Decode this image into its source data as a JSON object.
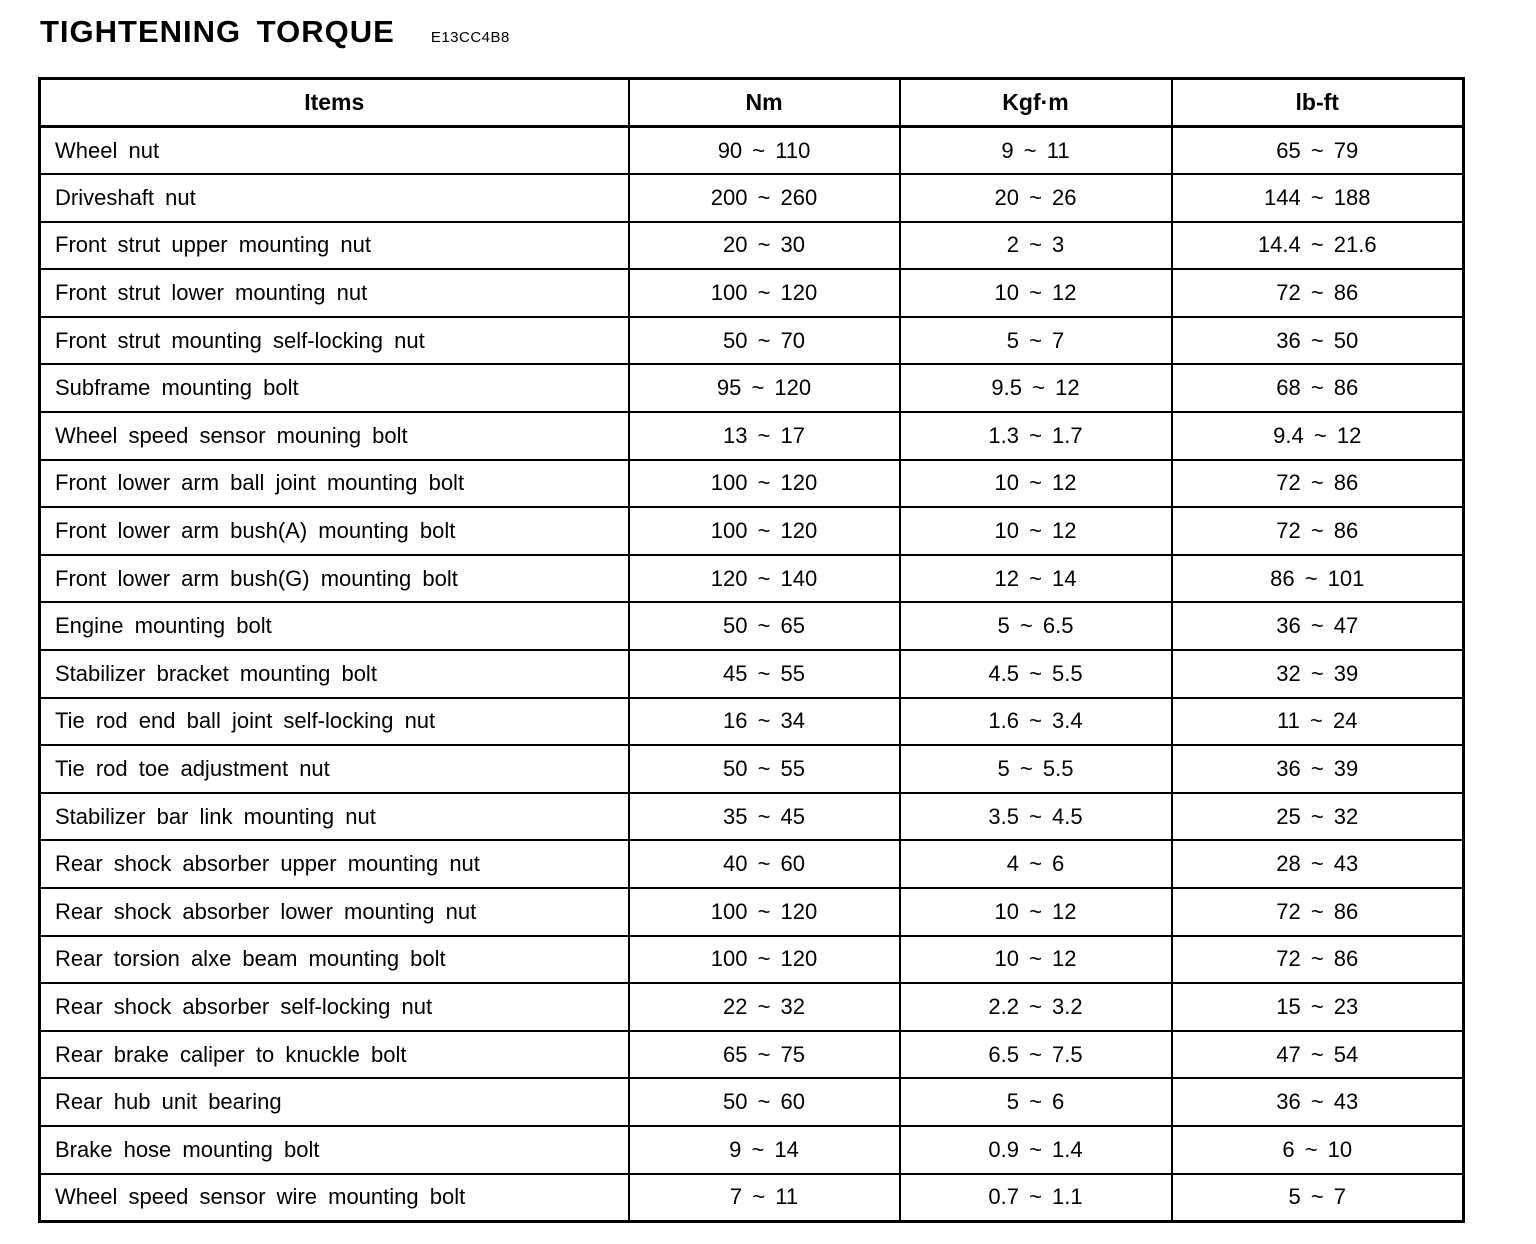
{
  "page": {
    "title": "TIGHTENING TORQUE",
    "code": "E13CC4B8"
  },
  "table": {
    "columns": [
      "Items",
      "Nm",
      "Kgf·m",
      "lb-ft"
    ],
    "rows": [
      {
        "item": "Wheel nut",
        "nm": "90 ~ 110",
        "kgfm": "9 ~ 11",
        "lbft": "65 ~ 79"
      },
      {
        "item": "Driveshaft nut",
        "nm": "200 ~ 260",
        "kgfm": "20 ~ 26",
        "lbft": "144 ~ 188"
      },
      {
        "item": "Front strut upper mounting nut",
        "nm": "20 ~ 30",
        "kgfm": "2 ~ 3",
        "lbft": "14.4 ~ 21.6"
      },
      {
        "item": "Front strut lower mounting nut",
        "nm": "100 ~ 120",
        "kgfm": "10 ~ 12",
        "lbft": "72 ~ 86"
      },
      {
        "item": "Front strut mounting self-locking nut",
        "nm": "50 ~ 70",
        "kgfm": "5 ~ 7",
        "lbft": "36 ~ 50"
      },
      {
        "item": "Subframe mounting bolt",
        "nm": "95 ~ 120",
        "kgfm": "9.5 ~ 12",
        "lbft": "68 ~ 86"
      },
      {
        "item": "Wheel speed sensor mouning bolt",
        "nm": "13 ~ 17",
        "kgfm": "1.3 ~ 1.7",
        "lbft": "9.4 ~ 12"
      },
      {
        "item": "Front lower arm ball joint mounting bolt",
        "nm": "100 ~ 120",
        "kgfm": "10 ~ 12",
        "lbft": "72 ~ 86"
      },
      {
        "item": "Front lower arm bush(A) mounting bolt",
        "nm": "100 ~ 120",
        "kgfm": "10 ~ 12",
        "lbft": "72 ~ 86"
      },
      {
        "item": "Front lower arm bush(G) mounting bolt",
        "nm": "120 ~ 140",
        "kgfm": "12 ~ 14",
        "lbft": "86 ~ 101"
      },
      {
        "item": "Engine mounting bolt",
        "nm": "50 ~ 65",
        "kgfm": "5 ~ 6.5",
        "lbft": "36 ~ 47"
      },
      {
        "item": "Stabilizer bracket mounting bolt",
        "nm": "45 ~ 55",
        "kgfm": "4.5 ~ 5.5",
        "lbft": "32 ~ 39"
      },
      {
        "item": "Tie rod end ball joint self-locking nut",
        "nm": "16 ~ 34",
        "kgfm": "1.6 ~ 3.4",
        "lbft": "11 ~ 24"
      },
      {
        "item": "Tie rod toe adjustment nut",
        "nm": "50 ~ 55",
        "kgfm": "5 ~ 5.5",
        "lbft": "36 ~ 39"
      },
      {
        "item": "Stabilizer bar link mounting nut",
        "nm": "35 ~ 45",
        "kgfm": "3.5 ~ 4.5",
        "lbft": "25 ~ 32"
      },
      {
        "item": "Rear shock absorber upper mounting nut",
        "nm": "40 ~ 60",
        "kgfm": "4 ~ 6",
        "lbft": "28 ~ 43"
      },
      {
        "item": "Rear shock absorber lower mounting nut",
        "nm": "100 ~ 120",
        "kgfm": "10 ~ 12",
        "lbft": "72 ~ 86"
      },
      {
        "item": "Rear torsion alxe beam mounting bolt",
        "nm": "100 ~ 120",
        "kgfm": "10 ~ 12",
        "lbft": "72 ~ 86"
      },
      {
        "item": "Rear shock absorber self-locking nut",
        "nm": "22 ~ 32",
        "kgfm": "2.2 ~ 3.2",
        "lbft": "15 ~ 23"
      },
      {
        "item": "Rear brake caliper to knuckle bolt",
        "nm": "65 ~ 75",
        "kgfm": "6.5 ~ 7.5",
        "lbft": "47 ~ 54"
      },
      {
        "item": "Rear hub unit bearing",
        "nm": "50 ~ 60",
        "kgfm": "5 ~ 6",
        "lbft": "36 ~ 43"
      },
      {
        "item": "Brake hose mounting bolt",
        "nm": "9 ~ 14",
        "kgfm": "0.9 ~ 1.4",
        "lbft": "6 ~ 10"
      },
      {
        "item": "Wheel speed sensor wire mounting bolt",
        "nm": "7 ~ 11",
        "kgfm": "0.7 ~ 1.1",
        "lbft": "5 ~ 7"
      }
    ]
  }
}
